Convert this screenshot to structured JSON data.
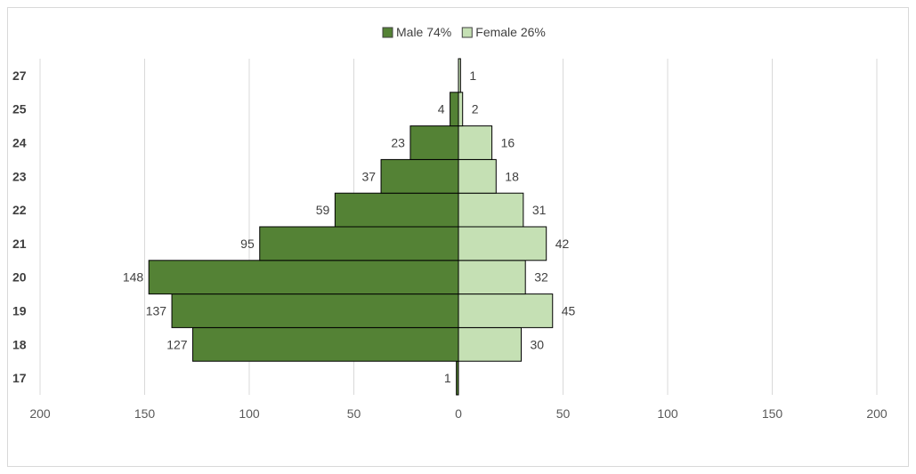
{
  "chart_data": {
    "type": "bar",
    "orientation": "horizontal-diverging",
    "categories": [
      "17",
      "18",
      "19",
      "20",
      "21",
      "22",
      "23",
      "24",
      "25",
      "27"
    ],
    "series": [
      {
        "name": "Male 74%",
        "values": [
          1,
          127,
          137,
          148,
          95,
          59,
          37,
          23,
          4,
          0
        ],
        "color": "#548235"
      },
      {
        "name": "Female 26%",
        "values": [
          0,
          30,
          45,
          32,
          42,
          31,
          18,
          16,
          2,
          1
        ],
        "color": "#c5e0b4"
      }
    ],
    "xticks": [
      "200",
      "150",
      "100",
      "50",
      "0",
      "50",
      "100",
      "150",
      "200"
    ],
    "xlim": [
      -200,
      200
    ],
    "legend_position": "top",
    "grid": true,
    "title": "",
    "xlabel": "",
    "ylabel": ""
  }
}
